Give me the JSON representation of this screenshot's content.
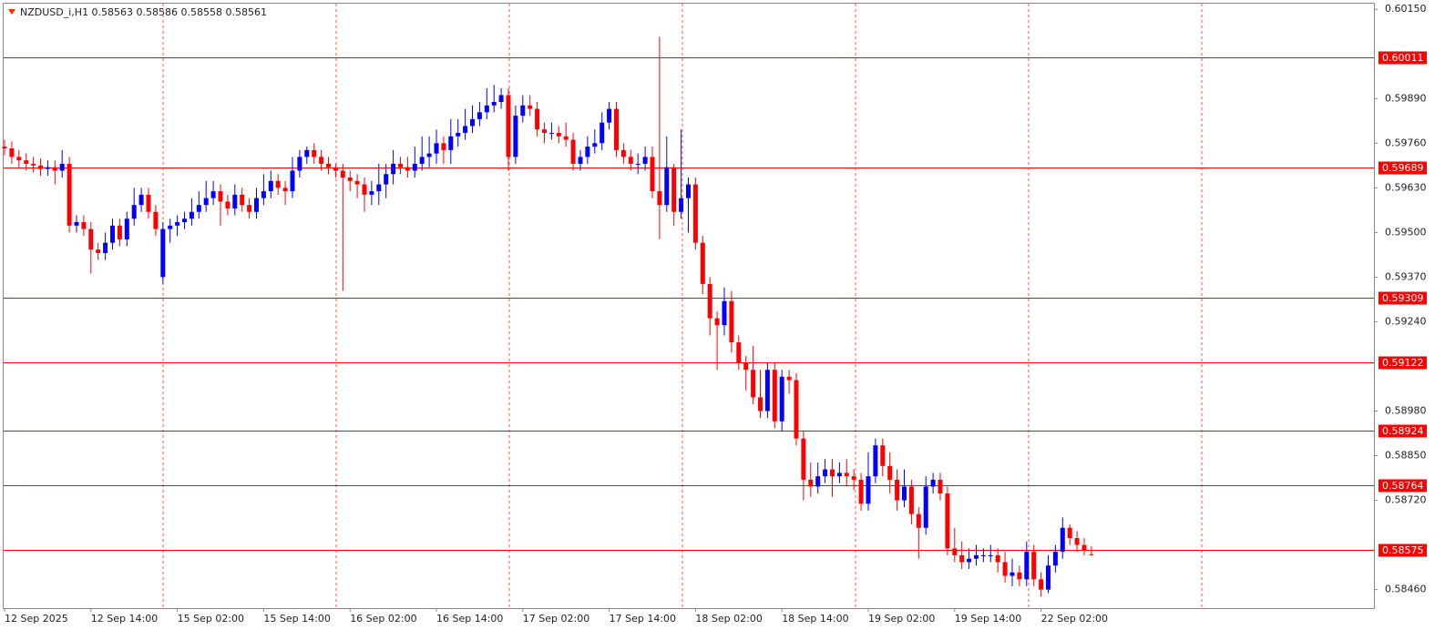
{
  "chart_data": {
    "type": "candlestick",
    "title": "NZDUSD_i,H1  0.58563 0.58586 0.58558 0.58561",
    "up_color": "#0000ff",
    "down_color": "#ff0000",
    "level_color": "#ff0000",
    "ylim": [
      0.58406,
      0.60177
    ],
    "yticks": [
      {
        "value": 0.6015,
        "label": "0.60150"
      },
      {
        "value": 0.5989,
        "label": "0.59890"
      },
      {
        "value": 0.5976,
        "label": "0.59760"
      },
      {
        "value": 0.5963,
        "label": "0.59630"
      },
      {
        "value": 0.595,
        "label": "0.59500"
      },
      {
        "value": 0.5937,
        "label": "0.59370"
      },
      {
        "value": 0.5924,
        "label": "0.59240"
      },
      {
        "value": 0.5898,
        "label": "0.58980"
      },
      {
        "value": 0.5885,
        "label": "0.58850"
      },
      {
        "value": 0.5872,
        "label": "0.58720"
      },
      {
        "value": 0.5846,
        "label": "0.58460"
      }
    ],
    "levels": [
      0.60011,
      0.59689,
      0.59309,
      0.59122,
      0.58924,
      0.58764,
      0.58575
    ],
    "xtick_labels": [
      "12 Sep 2025",
      "12 Sep 14:00",
      "15 Sep 02:00",
      "15 Sep 14:00",
      "16 Sep 02:00",
      "16 Sep 14:00",
      "17 Sep 02:00",
      "17 Sep 14:00",
      "18 Sep 02:00",
      "18 Sep 14:00",
      "19 Sep 02:00",
      "19 Sep 14:00",
      "22 Sep 02:00"
    ],
    "open": [
      0.5975,
      0.59745,
      0.5972,
      0.5971,
      0.597,
      0.59695,
      0.59685,
      0.5969,
      0.5968,
      0.597,
      0.5952,
      0.5953,
      0.5951,
      0.5945,
      0.5944,
      0.5947,
      0.5952,
      0.5948,
      0.5954,
      0.5958,
      0.5961,
      0.5956,
      0.5937,
      0.5951,
      0.5952,
      0.5953,
      0.5954,
      0.5956,
      0.5958,
      0.596,
      0.5962,
      0.5959,
      0.5957,
      0.5961,
      0.5958,
      0.5956,
      0.596,
      0.5962,
      0.5965,
      0.5963,
      0.5962,
      0.5968,
      0.5972,
      0.5974,
      0.5972,
      0.597,
      0.5969,
      0.5968,
      0.5966,
      0.5965,
      0.5964,
      0.5961,
      0.5962,
      0.5964,
      0.5967,
      0.597,
      0.5969,
      0.5968,
      0.597,
      0.5972,
      0.5973,
      0.5976,
      0.5974,
      0.5978,
      0.5979,
      0.5981,
      0.5983,
      0.5985,
      0.5987,
      0.5988,
      0.599,
      0.5972,
      0.5984,
      0.5987,
      0.5986,
      0.598,
      0.5979,
      0.5979,
      0.5978,
      0.5977,
      0.597,
      0.5972,
      0.5975,
      0.5976,
      0.5982,
      0.5986,
      0.5974,
      0.5972,
      0.597,
      0.597,
      0.5972,
      0.5962,
      0.5958,
      0.5969,
      0.5956,
      0.596,
      0.5964,
      0.5947,
      0.5935,
      0.5925,
      0.5923,
      0.593,
      0.5918,
      0.5912,
      0.591,
      0.5902,
      0.5898,
      0.591,
      0.5895,
      0.5908,
      0.5907,
      0.589,
      0.5878,
      0.5876,
      0.5879,
      0.5881,
      0.5879,
      0.588,
      0.5879,
      0.5878,
      0.5871,
      0.5879,
      0.5888,
      0.5882,
      0.5878,
      0.5872,
      0.5876,
      0.5868,
      0.5864,
      0.5876,
      0.5878,
      0.5874,
      0.5858,
      0.5856,
      0.5854,
      0.5855,
      0.5856,
      0.5856,
      0.5856,
      0.5854,
      0.585,
      0.5851,
      0.5849,
      0.5857,
      0.5849,
      0.5846,
      0.5853,
      0.5857,
      0.5864,
      0.5861,
      0.5859,
      0.58563
    ],
    "high": [
      0.5977,
      0.59765,
      0.5974,
      0.5973,
      0.5972,
      0.59715,
      0.5971,
      0.5971,
      0.5974,
      0.5972,
      0.5955,
      0.5955,
      0.5953,
      0.5947,
      0.595,
      0.5954,
      0.5954,
      0.5956,
      0.5963,
      0.5963,
      0.5963,
      0.5958,
      0.5953,
      0.5954,
      0.5955,
      0.5956,
      0.596,
      0.5962,
      0.5965,
      0.5965,
      0.5964,
      0.5961,
      0.5964,
      0.5963,
      0.596,
      0.5963,
      0.5967,
      0.5968,
      0.5967,
      0.5965,
      0.5972,
      0.5974,
      0.5975,
      0.5976,
      0.5974,
      0.5972,
      0.597,
      0.597,
      0.5968,
      0.5967,
      0.5966,
      0.5965,
      0.597,
      0.597,
      0.5974,
      0.5972,
      0.5972,
      0.5975,
      0.5978,
      0.5978,
      0.598,
      0.5978,
      0.5983,
      0.5983,
      0.5986,
      0.5987,
      0.5988,
      0.5992,
      0.5993,
      0.5992,
      0.5992,
      0.5987,
      0.599,
      0.599,
      0.5988,
      0.5982,
      0.5982,
      0.5981,
      0.5982,
      0.5979,
      0.5974,
      0.5978,
      0.598,
      0.5985,
      0.5988,
      0.5988,
      0.5976,
      0.5974,
      0.5973,
      0.5975,
      0.5975,
      0.6007,
      0.5978,
      0.597,
      0.598,
      0.5966,
      0.5966,
      0.5949,
      0.5937,
      0.5927,
      0.5934,
      0.5933,
      0.592,
      0.5914,
      0.5917,
      0.591,
      0.5912,
      0.5912,
      0.591,
      0.591,
      0.5909,
      0.5892,
      0.5883,
      0.5883,
      0.5884,
      0.5884,
      0.5883,
      0.5884,
      0.5881,
      0.588,
      0.5886,
      0.589,
      0.589,
      0.5886,
      0.5881,
      0.5881,
      0.5878,
      0.587,
      0.5879,
      0.588,
      0.588,
      0.5876,
      0.5864,
      0.586,
      0.5858,
      0.5859,
      0.5858,
      0.5859,
      0.5858,
      0.5857,
      0.5855,
      0.5853,
      0.586,
      0.5859,
      0.5851,
      0.5856,
      0.5859,
      0.5867,
      0.5865,
      0.5863,
      0.5861,
      0.58586
    ],
    "low": [
      0.59725,
      0.597,
      0.5969,
      0.5968,
      0.59675,
      0.59665,
      0.59665,
      0.5964,
      0.5966,
      0.595,
      0.595,
      0.5949,
      0.5938,
      0.5942,
      0.5942,
      0.5945,
      0.5946,
      0.5946,
      0.5952,
      0.5956,
      0.5954,
      0.5949,
      0.5935,
      0.5947,
      0.5949,
      0.5951,
      0.5952,
      0.5954,
      0.5956,
      0.5958,
      0.5952,
      0.5955,
      0.5955,
      0.5956,
      0.5954,
      0.5954,
      0.5958,
      0.596,
      0.5961,
      0.5958,
      0.596,
      0.5966,
      0.597,
      0.597,
      0.5968,
      0.5967,
      0.5966,
      0.5933,
      0.5962,
      0.596,
      0.5956,
      0.5958,
      0.5958,
      0.596,
      0.5964,
      0.5967,
      0.5966,
      0.5966,
      0.5968,
      0.5969,
      0.597,
      0.597,
      0.597,
      0.5975,
      0.5977,
      0.5979,
      0.5981,
      0.5983,
      0.5985,
      0.5986,
      0.5968,
      0.597,
      0.5982,
      0.5984,
      0.5978,
      0.5976,
      0.5977,
      0.5976,
      0.5975,
      0.5968,
      0.5968,
      0.597,
      0.5973,
      0.5974,
      0.598,
      0.5972,
      0.597,
      0.5968,
      0.5967,
      0.5968,
      0.596,
      0.5948,
      0.5956,
      0.5952,
      0.5954,
      0.595,
      0.5945,
      0.5932,
      0.592,
      0.591,
      0.592,
      0.5915,
      0.591,
      0.5904,
      0.59,
      0.5896,
      0.5896,
      0.5893,
      0.5892,
      0.5903,
      0.5888,
      0.5872,
      0.5873,
      0.5874,
      0.5877,
      0.5873,
      0.5877,
      0.5876,
      0.5875,
      0.5869,
      0.5869,
      0.5877,
      0.5879,
      0.5874,
      0.5869,
      0.587,
      0.5865,
      0.5855,
      0.5862,
      0.5874,
      0.5872,
      0.5856,
      0.5854,
      0.5852,
      0.5852,
      0.5853,
      0.5854,
      0.5854,
      0.5851,
      0.5848,
      0.5847,
      0.5847,
      0.5847,
      0.5847,
      0.5844,
      0.5845,
      0.5851,
      0.5855,
      0.5859,
      0.5857,
      0.5856,
      0.58558
    ],
    "close": [
      0.59745,
      0.5972,
      0.5971,
      0.597,
      0.59695,
      0.59685,
      0.5969,
      0.5968,
      0.597,
      0.5952,
      0.5953,
      0.5951,
      0.5945,
      0.5944,
      0.5947,
      0.5952,
      0.5948,
      0.5954,
      0.5958,
      0.5961,
      0.5956,
      0.5951,
      0.5951,
      0.5952,
      0.5953,
      0.5954,
      0.5956,
      0.5958,
      0.596,
      0.5962,
      0.5959,
      0.5957,
      0.5961,
      0.5958,
      0.5956,
      0.596,
      0.5962,
      0.5965,
      0.5963,
      0.5962,
      0.5968,
      0.5972,
      0.5974,
      0.5972,
      0.597,
      0.5969,
      0.5968,
      0.5966,
      0.5965,
      0.5964,
      0.5961,
      0.5962,
      0.5964,
      0.5967,
      0.597,
      0.5969,
      0.5968,
      0.597,
      0.5972,
      0.5973,
      0.5976,
      0.5974,
      0.5978,
      0.5979,
      0.5981,
      0.5983,
      0.5985,
      0.5987,
      0.5988,
      0.599,
      0.5972,
      0.5984,
      0.5987,
      0.5986,
      0.598,
      0.5979,
      0.5979,
      0.5978,
      0.5977,
      0.597,
      0.5972,
      0.5975,
      0.5976,
      0.5982,
      0.5986,
      0.5974,
      0.5972,
      0.597,
      0.597,
      0.5972,
      0.5962,
      0.5958,
      0.5969,
      0.5956,
      0.596,
      0.5964,
      0.5947,
      0.5935,
      0.5925,
      0.5923,
      0.593,
      0.5918,
      0.5912,
      0.591,
      0.5902,
      0.5898,
      0.591,
      0.5895,
      0.5908,
      0.5907,
      0.589,
      0.5878,
      0.5876,
      0.5879,
      0.5881,
      0.5879,
      0.588,
      0.5879,
      0.5878,
      0.5871,
      0.5879,
      0.5888,
      0.5882,
      0.5878,
      0.5872,
      0.5876,
      0.5868,
      0.5864,
      0.5876,
      0.5878,
      0.5874,
      0.5858,
      0.5856,
      0.5854,
      0.5855,
      0.5856,
      0.5856,
      0.5856,
      0.5854,
      0.585,
      0.5851,
      0.5849,
      0.5857,
      0.5849,
      0.5846,
      0.5853,
      0.5857,
      0.5864,
      0.5861,
      0.5859,
      0.58575,
      0.58561
    ]
  }
}
